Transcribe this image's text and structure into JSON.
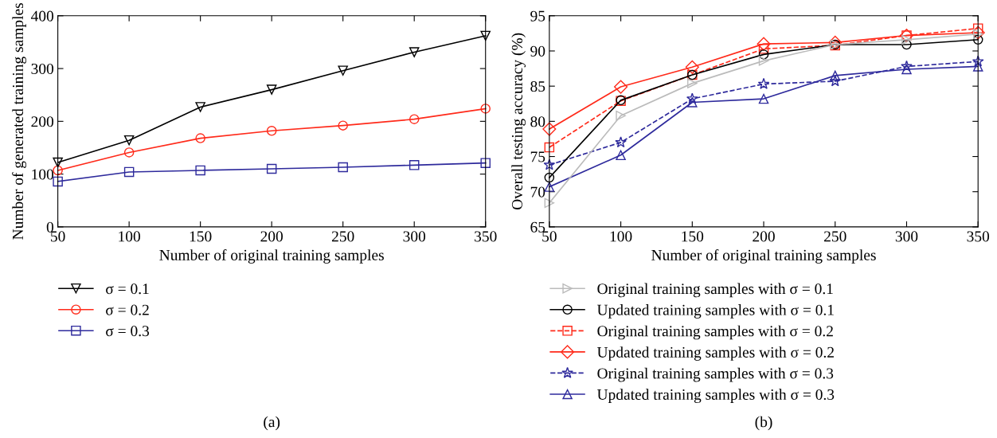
{
  "chart_data": [
    {
      "type": "line",
      "xlabel": "Number of original training samples",
      "ylabel": "Number of generated training samples",
      "x": [
        50,
        100,
        150,
        200,
        250,
        300,
        350
      ],
      "xlim": [
        50,
        350
      ],
      "xticks": [
        50,
        100,
        150,
        200,
        250,
        300,
        350
      ],
      "ylim": [
        0,
        400
      ],
      "yticks": [
        0,
        100,
        200,
        300,
        400
      ],
      "grid": false,
      "legend": "bottom",
      "annotations": [
        "(a)"
      ],
      "series": [
        {
          "name": "σ = 0.1",
          "color": "#000000",
          "marker": "triangle_down",
          "line_style": "solid",
          "values": [
            122,
            164,
            227,
            260,
            296,
            331,
            362
          ]
        },
        {
          "name": "σ = 0.2",
          "color": "#ff2a1a",
          "marker": "circle",
          "line_style": "solid",
          "values": [
            107,
            141,
            168,
            182,
            192,
            204,
            224
          ]
        },
        {
          "name": "σ = 0.3",
          "color": "#2e2a9c",
          "marker": "square",
          "line_style": "solid",
          "values": [
            86,
            104,
            107,
            110,
            113,
            117,
            121
          ]
        }
      ]
    },
    {
      "type": "line",
      "xlabel": "Number of original training samples",
      "ylabel": "Overall testing accuracy (%)",
      "x": [
        50,
        100,
        150,
        200,
        250,
        300,
        350
      ],
      "xlim": [
        50,
        350
      ],
      "xticks": [
        50,
        100,
        150,
        200,
        250,
        300,
        350
      ],
      "ylim": [
        65,
        95
      ],
      "yticks": [
        65,
        70,
        75,
        80,
        85,
        90,
        95
      ],
      "grid": false,
      "legend": "bottom",
      "annotations": [
        "(b)"
      ],
      "series": [
        {
          "name": "Original training samples with σ = 0.1",
          "color": "#bbbbbb",
          "marker": "triangle_right",
          "line_style": "solid",
          "values": [
            68.4,
            80.8,
            85.4,
            88.6,
            90.9,
            91.6,
            92.4
          ]
        },
        {
          "name": "Updated training samples with σ = 0.1",
          "color": "#000000",
          "marker": "circle",
          "line_style": "solid",
          "values": [
            72.0,
            83.0,
            86.6,
            89.5,
            90.9,
            90.9,
            91.6
          ]
        },
        {
          "name": "Original training samples with σ = 0.2",
          "color": "#ff2a1a",
          "marker": "square",
          "line_style": "dashed",
          "values": [
            76.3,
            82.9,
            86.6,
            90.3,
            90.8,
            92.2,
            93.2
          ]
        },
        {
          "name": "Updated training samples with σ = 0.2",
          "color": "#ff2a1a",
          "marker": "diamond",
          "line_style": "solid",
          "values": [
            78.9,
            84.9,
            87.7,
            91.0,
            91.2,
            92.2,
            92.6
          ]
        },
        {
          "name": "Original training samples with σ = 0.3",
          "color": "#2e2a9c",
          "marker": "star",
          "line_style": "dashed",
          "values": [
            73.8,
            77.0,
            83.2,
            85.3,
            85.7,
            87.8,
            88.5
          ]
        },
        {
          "name": "Updated training samples with σ = 0.3",
          "color": "#2e2a9c",
          "marker": "triangle_up",
          "line_style": "solid",
          "values": [
            70.7,
            75.2,
            82.7,
            83.2,
            86.5,
            87.4,
            87.8
          ]
        }
      ]
    }
  ]
}
